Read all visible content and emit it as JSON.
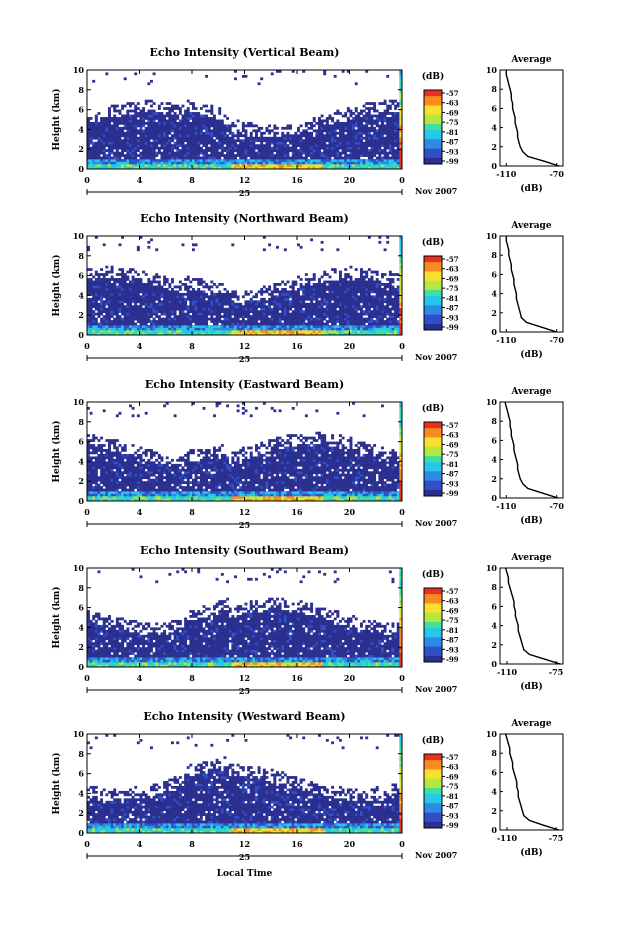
{
  "chart_data": [
    {
      "type": "heatmap",
      "title": "Echo Intensity (Vertical Beam)",
      "ylabel": "Height (km)",
      "x_ticks": [
        "0",
        "4",
        "8",
        "12",
        "16",
        "20",
        "0"
      ],
      "y_ticks": [
        "0",
        "2",
        "4",
        "6",
        "8",
        "10"
      ],
      "xlim": [
        0,
        24
      ],
      "ylim": [
        0,
        10
      ],
      "date_label": "25",
      "month_label": "Nov 2007",
      "colorbar": {
        "label": "(dB)",
        "ticks": [
          "-57",
          "-63",
          "-69",
          "-75",
          "-81",
          "-87",
          "-93",
          "-99"
        ]
      },
      "colors": {
        "scale": [
          "#2b2f8f",
          "#3050c8",
          "#2f8ae6",
          "#25c8e8",
          "#40e0a0",
          "#b8e840",
          "#f8e030",
          "#f88a20",
          "#e83020"
        ]
      },
      "profile": {
        "title": "Average",
        "xlabel": "(dB)",
        "x_ticks": [
          "-110",
          "-70"
        ],
        "y_ticks": [
          "0",
          "2",
          "4",
          "6",
          "8",
          "10"
        ],
        "xlim": [
          -115,
          -65
        ],
        "heights": [
          0,
          0.5,
          1,
          1.5,
          2,
          2.5,
          3,
          3.5,
          4,
          4.5,
          5,
          5.5,
          6,
          6.5,
          7,
          7.5,
          8,
          8.5,
          9,
          9.5,
          10
        ],
        "values": [
          -68,
          -80,
          -93,
          -97,
          -99,
          -100,
          -101,
          -101,
          -102,
          -103,
          -103,
          -104,
          -105,
          -105,
          -106,
          -106,
          -107,
          -108,
          -109,
          -110,
          -110
        ]
      }
    },
    {
      "type": "heatmap",
      "title": "Echo Intensity (Northward Beam)",
      "ylabel": "Height (km)",
      "x_ticks": [
        "0",
        "4",
        "8",
        "12",
        "16",
        "20",
        "0"
      ],
      "y_ticks": [
        "0",
        "2",
        "4",
        "6",
        "8",
        "10"
      ],
      "xlim": [
        0,
        24
      ],
      "ylim": [
        0,
        10
      ],
      "date_label": "25",
      "month_label": "Nov 2007",
      "colorbar": {
        "label": "(dB)",
        "ticks": [
          "-57",
          "-63",
          "-69",
          "-75",
          "-81",
          "-87",
          "-93",
          "-99"
        ]
      },
      "colors": {
        "scale": [
          "#2b2f8f",
          "#3050c8",
          "#2f8ae6",
          "#25c8e8",
          "#40e0a0",
          "#b8e840",
          "#f8e030",
          "#f88a20",
          "#e83020"
        ]
      },
      "profile": {
        "title": "Average",
        "xlabel": "(dB)",
        "x_ticks": [
          "-110",
          "-70"
        ],
        "y_ticks": [
          "0",
          "2",
          "4",
          "6",
          "8",
          "10"
        ],
        "xlim": [
          -115,
          -65
        ],
        "heights": [
          0,
          0.5,
          1,
          1.5,
          2,
          2.5,
          3,
          3.5,
          4,
          4.5,
          5,
          5.5,
          6,
          6.5,
          7,
          7.5,
          8,
          8.5,
          9,
          9.5,
          10
        ],
        "values": [
          -70,
          -82,
          -94,
          -98,
          -99,
          -100,
          -101,
          -102,
          -102,
          -103,
          -104,
          -104,
          -105,
          -106,
          -106,
          -107,
          -108,
          -108,
          -109,
          -110,
          -110
        ]
      }
    },
    {
      "type": "heatmap",
      "title": "Echo Intensity (Eastward Beam)",
      "ylabel": "Height (km)",
      "x_ticks": [
        "0",
        "4",
        "8",
        "12",
        "16",
        "20",
        "0"
      ],
      "y_ticks": [
        "0",
        "2",
        "4",
        "6",
        "8",
        "10"
      ],
      "xlim": [
        0,
        24
      ],
      "ylim": [
        0,
        10
      ],
      "date_label": "25",
      "month_label": "Nov 2007",
      "colorbar": {
        "label": "(dB)",
        "ticks": [
          "-57",
          "-63",
          "-69",
          "-75",
          "-81",
          "-87",
          "-93",
          "-99"
        ]
      },
      "colors": {
        "scale": [
          "#2b2f8f",
          "#3050c8",
          "#2f8ae6",
          "#25c8e8",
          "#40e0a0",
          "#b8e840",
          "#f8e030",
          "#f88a20",
          "#e83020"
        ]
      },
      "profile": {
        "title": "Average",
        "xlabel": "(dB)",
        "x_ticks": [
          "-110",
          "-70"
        ],
        "y_ticks": [
          "0",
          "2",
          "4",
          "6",
          "8",
          "10"
        ],
        "xlim": [
          -115,
          -65
        ],
        "heights": [
          0,
          0.5,
          1,
          1.5,
          2,
          2.5,
          3,
          3.5,
          4,
          4.5,
          5,
          5.5,
          6,
          6.5,
          7,
          7.5,
          8,
          8.5,
          9,
          9.5,
          10
        ],
        "values": [
          -69,
          -81,
          -93,
          -97,
          -99,
          -100,
          -101,
          -101,
          -102,
          -103,
          -104,
          -104,
          -105,
          -106,
          -106,
          -107,
          -107,
          -108,
          -109,
          -110,
          -111
        ]
      }
    },
    {
      "type": "heatmap",
      "title": "Echo Intensity (Southward Beam)",
      "ylabel": "Height (km)",
      "x_ticks": [
        "0",
        "4",
        "8",
        "12",
        "16",
        "20",
        "0"
      ],
      "y_ticks": [
        "0",
        "2",
        "4",
        "6",
        "8",
        "10"
      ],
      "xlim": [
        0,
        24
      ],
      "ylim": [
        0,
        10
      ],
      "date_label": "25",
      "month_label": "Nov 2007",
      "colorbar": {
        "label": "(dB)",
        "ticks": [
          "-57",
          "-63",
          "-69",
          "-75",
          "-81",
          "-87",
          "-93",
          "-99"
        ]
      },
      "colors": {
        "scale": [
          "#2b2f8f",
          "#3050c8",
          "#2f8ae6",
          "#25c8e8",
          "#40e0a0",
          "#b8e840",
          "#f8e030",
          "#f88a20",
          "#e83020"
        ]
      },
      "profile": {
        "title": "Average",
        "xlabel": "(dB)",
        "x_ticks": [
          "-110",
          "-75"
        ],
        "y_ticks": [
          "0",
          "2",
          "4",
          "6",
          "8",
          "10"
        ],
        "xlim": [
          -115,
          -70
        ],
        "heights": [
          0,
          0.5,
          1,
          1.5,
          2,
          2.5,
          3,
          3.5,
          4,
          4.5,
          5,
          5.5,
          6,
          6.5,
          7,
          7.5,
          8,
          8.5,
          9,
          9.5,
          10
        ],
        "values": [
          -72,
          -83,
          -94,
          -98,
          -99,
          -100,
          -101,
          -102,
          -102,
          -103,
          -104,
          -104,
          -105,
          -105,
          -106,
          -107,
          -108,
          -109,
          -109,
          -110,
          -111
        ]
      }
    },
    {
      "type": "heatmap",
      "title": "Echo Intensity (Westward Beam)",
      "ylabel": "Height (km)",
      "x_ticks": [
        "0",
        "4",
        "8",
        "12",
        "16",
        "20",
        "0"
      ],
      "y_ticks": [
        "0",
        "2",
        "4",
        "6",
        "8",
        "10"
      ],
      "xlim": [
        0,
        24
      ],
      "ylim": [
        0,
        10
      ],
      "date_label": "25",
      "month_label": "Nov 2007",
      "xlabel": "Local Time",
      "colorbar": {
        "label": "(dB)",
        "ticks": [
          "-57",
          "-63",
          "-69",
          "-75",
          "-81",
          "-87",
          "-93",
          "-99"
        ]
      },
      "colors": {
        "scale": [
          "#2b2f8f",
          "#3050c8",
          "#2f8ae6",
          "#25c8e8",
          "#40e0a0",
          "#b8e840",
          "#f8e030",
          "#f88a20",
          "#e83020"
        ]
      },
      "profile": {
        "title": "Average",
        "xlabel": "(dB)",
        "x_ticks": [
          "-110",
          "-75"
        ],
        "y_ticks": [
          "0",
          "2",
          "4",
          "6",
          "8",
          "10"
        ],
        "xlim": [
          -115,
          -70
        ],
        "heights": [
          0,
          0.5,
          1,
          1.5,
          2,
          2.5,
          3,
          3.5,
          4,
          4.5,
          5,
          5.5,
          6,
          6.5,
          7,
          7.5,
          8,
          8.5,
          9,
          9.5,
          10
        ],
        "values": [
          -73,
          -84,
          -94,
          -98,
          -99,
          -100,
          -101,
          -102,
          -102,
          -103,
          -103,
          -104,
          -105,
          -106,
          -106,
          -107,
          -108,
          -108,
          -109,
          -110,
          -111
        ]
      }
    }
  ]
}
